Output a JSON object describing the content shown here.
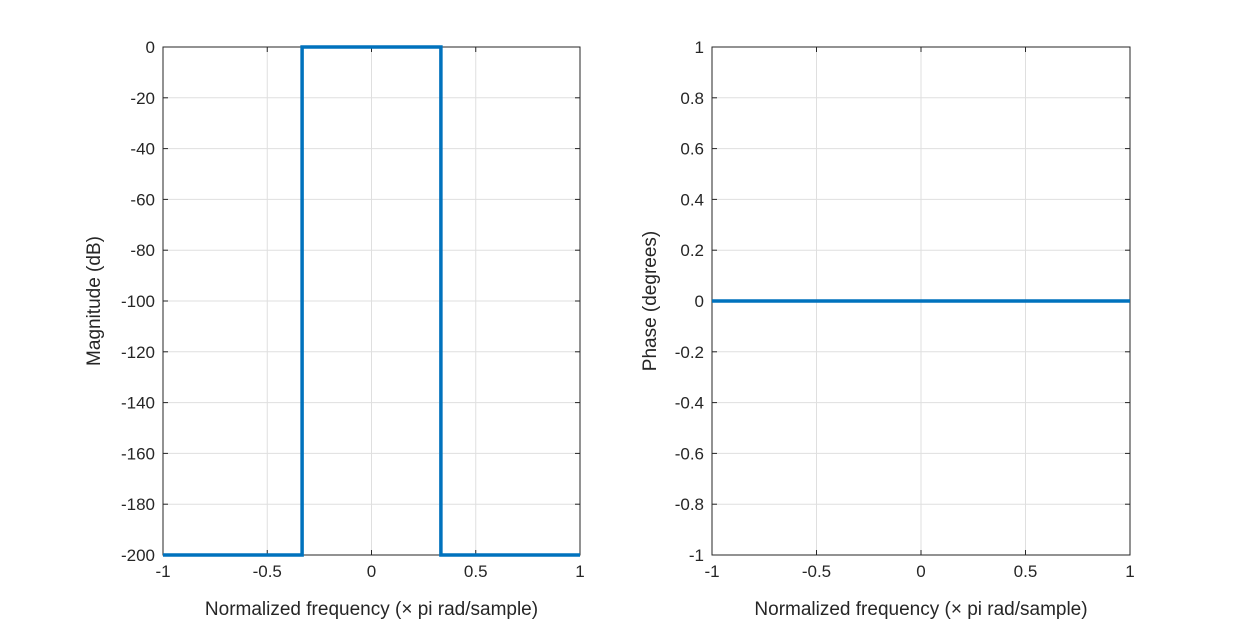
{
  "chart_data": [
    {
      "type": "line",
      "xlabel": "Normalized frequency (× pi rad/sample)",
      "ylabel": "Magnitude (dB)",
      "xlim": [
        -1,
        1
      ],
      "ylim": [
        -200,
        0
      ],
      "xticks": [
        -1,
        -0.5,
        0,
        0.5,
        1
      ],
      "xtick_labels": [
        "-1",
        "-0.5",
        "0",
        "0.5",
        "1"
      ],
      "yticks": [
        0,
        -20,
        -40,
        -60,
        -80,
        -100,
        -120,
        -140,
        -160,
        -180,
        -200
      ],
      "ytick_labels": [
        "0",
        "-20",
        "-40",
        "-60",
        "-80",
        "-100",
        "-120",
        "-140",
        "-160",
        "-180",
        "-200"
      ],
      "grid": true,
      "color": "#0072BD",
      "series": [
        {
          "x": [
            -1,
            -0.333,
            -0.333,
            0.333,
            0.333,
            1
          ],
          "y": [
            -200,
            -200,
            0,
            0,
            -200,
            -200
          ]
        }
      ]
    },
    {
      "type": "line",
      "xlabel": "Normalized frequency (× pi rad/sample)",
      "ylabel": "Phase (degrees)",
      "xlim": [
        -1,
        1
      ],
      "ylim": [
        -1,
        1
      ],
      "xticks": [
        -1,
        -0.5,
        0,
        0.5,
        1
      ],
      "xtick_labels": [
        "-1",
        "-0.5",
        "0",
        "0.5",
        "1"
      ],
      "yticks": [
        1,
        0.8,
        0.6,
        0.4,
        0.2,
        0,
        -0.2,
        -0.4,
        -0.6,
        -0.8,
        -1
      ],
      "ytick_labels": [
        "1",
        "0.8",
        "0.6",
        "0.4",
        "0.2",
        "0",
        "-0.2",
        "-0.4",
        "-0.6",
        "-0.8",
        "-1"
      ],
      "grid": true,
      "color": "#0072BD",
      "series": [
        {
          "x": [
            -1,
            1
          ],
          "y": [
            0,
            0
          ]
        }
      ]
    }
  ]
}
